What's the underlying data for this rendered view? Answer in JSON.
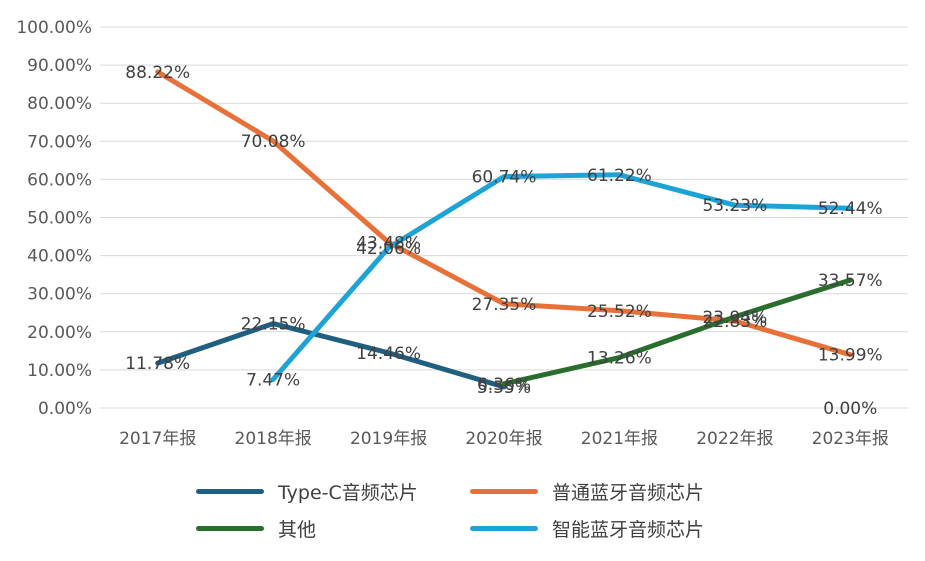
{
  "chart_data": {
    "type": "line",
    "categories": [
      "2017年报",
      "2018年报",
      "2019年报",
      "2020年报",
      "2021年报",
      "2022年报",
      "2023年报"
    ],
    "ylim": [
      0,
      100
    ],
    "yticks": [
      "0.00%",
      "10.00%",
      "20.00%",
      "30.00%",
      "40.00%",
      "50.00%",
      "60.00%",
      "70.00%",
      "80.00%",
      "90.00%",
      "100.00%"
    ],
    "legend_position": "bottom",
    "series": [
      {
        "name": "Type-C音频芯片",
        "color": "#1f5f7f",
        "values": [
          11.78,
          22.15,
          14.46,
          5.55,
          null,
          null,
          null
        ],
        "labels": [
          "11.78%",
          "22.15%",
          "14.46%",
          "5.55%",
          null,
          null,
          null
        ]
      },
      {
        "name": "普通蓝牙音频芯片",
        "color": "#e8713a",
        "values": [
          88.22,
          70.08,
          43.48,
          27.35,
          25.52,
          22.83,
          13.99
        ],
        "labels": [
          "88.22%",
          "70.08%",
          "43.48%",
          "27.35%",
          "25.52%",
          "22.83%",
          "13.99%"
        ]
      },
      {
        "name": "其他",
        "color": "#2a6e2e",
        "values": [
          null,
          null,
          null,
          6.36,
          13.26,
          23.94,
          33.57
        ],
        "labels": [
          null,
          null,
          null,
          "6.36%",
          "13.26%",
          "23.94%",
          "33.57%"
        ]
      },
      {
        "name": "智能蓝牙音频芯片",
        "color": "#1ea3d6",
        "values": [
          null,
          7.47,
          42.06,
          60.74,
          61.22,
          53.23,
          52.44
        ],
        "labels": [
          null,
          "7.47%",
          "42.06%",
          "60.74%",
          "61.22%",
          "53.23%",
          "52.44%"
        ]
      }
    ],
    "extra_labels": [
      {
        "category_index": 6,
        "value": 0,
        "text": "0.00%"
      }
    ]
  }
}
